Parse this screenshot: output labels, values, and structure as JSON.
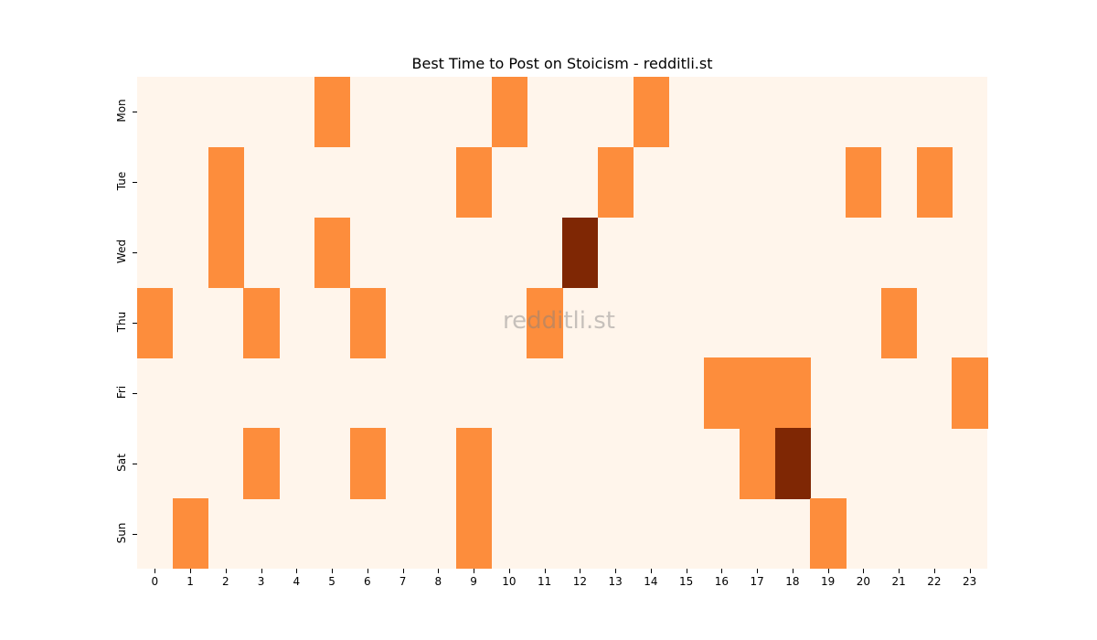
{
  "chart_data": {
    "type": "heatmap",
    "title": "Best Time to Post on Stoicism - redditli.st",
    "xlabel": "",
    "ylabel": "",
    "x_categories": [
      "0",
      "1",
      "2",
      "3",
      "4",
      "5",
      "6",
      "7",
      "8",
      "9",
      "10",
      "11",
      "12",
      "13",
      "14",
      "15",
      "16",
      "17",
      "18",
      "19",
      "20",
      "21",
      "22",
      "23"
    ],
    "y_categories": [
      "Mon",
      "Tue",
      "Wed",
      "Thu",
      "Fri",
      "Sat",
      "Sun"
    ],
    "values": [
      [
        0,
        0,
        0,
        0,
        0,
        1,
        0,
        0,
        0,
        0,
        1,
        0,
        0,
        0,
        1,
        0,
        0,
        0,
        0,
        0,
        0,
        0,
        0,
        0
      ],
      [
        0,
        0,
        1,
        0,
        0,
        0,
        0,
        0,
        0,
        1,
        0,
        0,
        0,
        1,
        0,
        0,
        0,
        0,
        0,
        0,
        1,
        0,
        1,
        0
      ],
      [
        0,
        0,
        1,
        0,
        0,
        1,
        0,
        0,
        0,
        0,
        0,
        0,
        2,
        0,
        0,
        0,
        0,
        0,
        0,
        0,
        0,
        0,
        0,
        0
      ],
      [
        1,
        0,
        0,
        1,
        0,
        0,
        1,
        0,
        0,
        0,
        0,
        1,
        0,
        0,
        0,
        0,
        0,
        0,
        0,
        0,
        0,
        1,
        0,
        0
      ],
      [
        0,
        0,
        0,
        0,
        0,
        0,
        0,
        0,
        0,
        0,
        0,
        0,
        0,
        0,
        0,
        0,
        1,
        1,
        1,
        0,
        0,
        0,
        0,
        1
      ],
      [
        0,
        0,
        0,
        1,
        0,
        0,
        1,
        0,
        0,
        1,
        0,
        0,
        0,
        0,
        0,
        0,
        0,
        1,
        2,
        0,
        0,
        0,
        0,
        0
      ],
      [
        0,
        1,
        0,
        0,
        0,
        0,
        0,
        0,
        0,
        1,
        0,
        0,
        0,
        0,
        0,
        0,
        0,
        0,
        0,
        1,
        0,
        0,
        0,
        0
      ]
    ],
    "colormap": "Oranges",
    "colors": {
      "0": "#fff5eb",
      "1": "#fd8d3c",
      "2": "#7f2704"
    },
    "legend": "none",
    "grid": false
  },
  "watermark": "redditli.st"
}
